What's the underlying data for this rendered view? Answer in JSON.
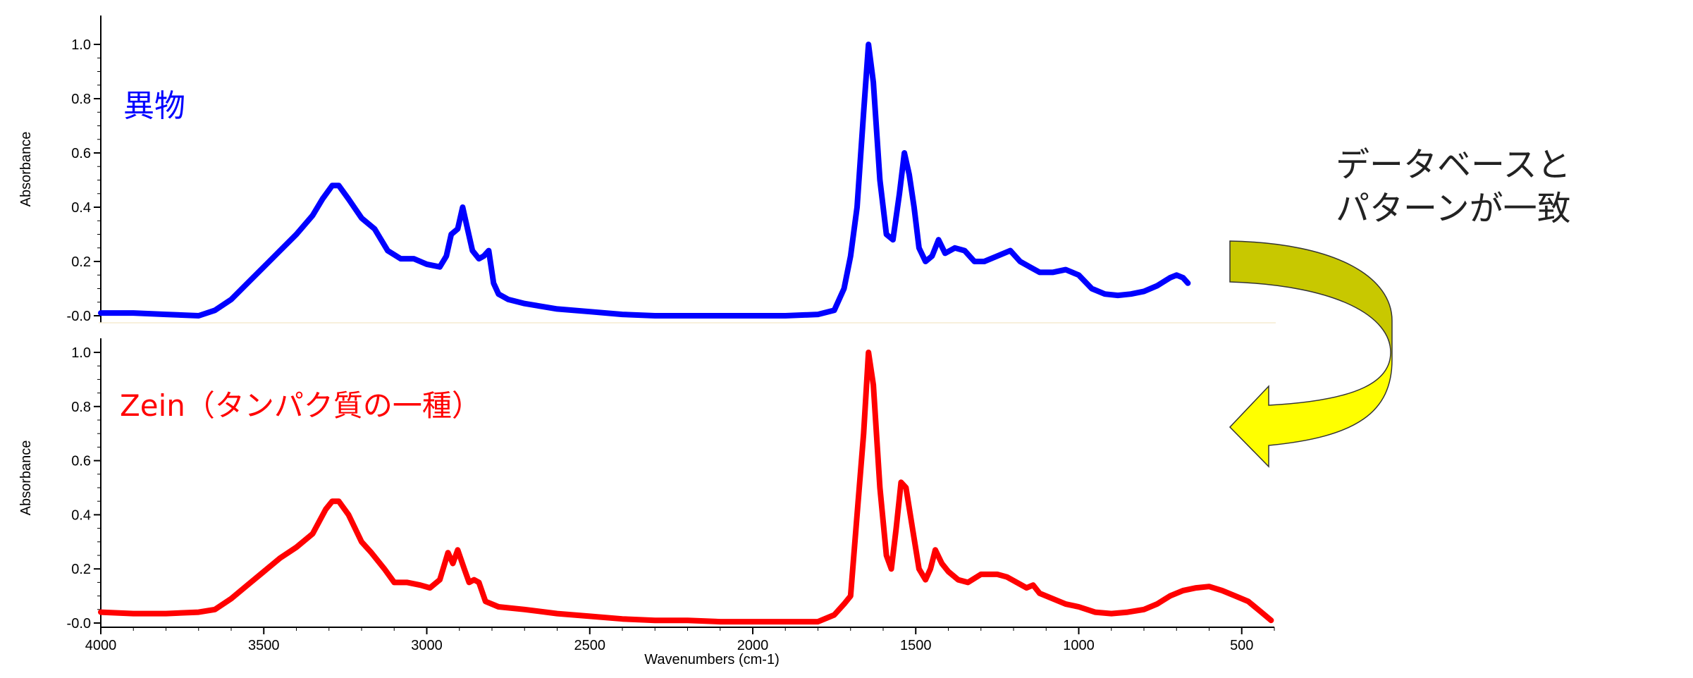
{
  "colors": {
    "top_series": "#0000ff",
    "bottom_series": "#ff0000",
    "arrow_top": "#c8c800",
    "arrow_bottom": "#ffff00"
  },
  "annotation": {
    "line1": "データベースと",
    "line2": "パターンが一致"
  },
  "chart_data": [
    {
      "type": "line",
      "series": [
        {
          "name": "異物",
          "color": "#0000ff"
        }
      ],
      "ylabel": "Absorbance",
      "xlim": [
        4000,
        400
      ],
      "ylim": [
        -0.02,
        1.05
      ],
      "x_reversed": true,
      "yticks": [
        "-0.0",
        "0.2",
        "0.4",
        "0.6",
        "0.8",
        "1.0"
      ],
      "ytick_values": [
        0.0,
        0.2,
        0.4,
        0.6,
        0.8,
        1.0
      ],
      "points": [
        [
          4000,
          0.01
        ],
        [
          3900,
          0.01
        ],
        [
          3800,
          0.005
        ],
        [
          3700,
          0.0
        ],
        [
          3650,
          0.02
        ],
        [
          3600,
          0.06
        ],
        [
          3550,
          0.12
        ],
        [
          3500,
          0.18
        ],
        [
          3450,
          0.24
        ],
        [
          3400,
          0.3
        ],
        [
          3350,
          0.37
        ],
        [
          3320,
          0.43
        ],
        [
          3290,
          0.48
        ],
        [
          3270,
          0.48
        ],
        [
          3240,
          0.43
        ],
        [
          3200,
          0.36
        ],
        [
          3160,
          0.32
        ],
        [
          3120,
          0.24
        ],
        [
          3080,
          0.21
        ],
        [
          3040,
          0.21
        ],
        [
          3000,
          0.19
        ],
        [
          2960,
          0.18
        ],
        [
          2940,
          0.22
        ],
        [
          2925,
          0.3
        ],
        [
          2905,
          0.32
        ],
        [
          2890,
          0.4
        ],
        [
          2875,
          0.32
        ],
        [
          2860,
          0.24
        ],
        [
          2840,
          0.21
        ],
        [
          2825,
          0.22
        ],
        [
          2810,
          0.24
        ],
        [
          2795,
          0.12
        ],
        [
          2780,
          0.08
        ],
        [
          2750,
          0.06
        ],
        [
          2700,
          0.045
        ],
        [
          2600,
          0.025
        ],
        [
          2500,
          0.015
        ],
        [
          2400,
          0.005
        ],
        [
          2300,
          0.0
        ],
        [
          2200,
          0.0
        ],
        [
          2100,
          0.0
        ],
        [
          2000,
          0.0
        ],
        [
          1900,
          0.0
        ],
        [
          1800,
          0.005
        ],
        [
          1750,
          0.02
        ],
        [
          1720,
          0.1
        ],
        [
          1700,
          0.22
        ],
        [
          1680,
          0.4
        ],
        [
          1660,
          0.75
        ],
        [
          1645,
          1.0
        ],
        [
          1630,
          0.86
        ],
        [
          1610,
          0.5
        ],
        [
          1590,
          0.3
        ],
        [
          1570,
          0.28
        ],
        [
          1550,
          0.45
        ],
        [
          1535,
          0.6
        ],
        [
          1520,
          0.52
        ],
        [
          1505,
          0.4
        ],
        [
          1490,
          0.25
        ],
        [
          1470,
          0.2
        ],
        [
          1450,
          0.22
        ],
        [
          1430,
          0.28
        ],
        [
          1410,
          0.23
        ],
        [
          1380,
          0.25
        ],
        [
          1350,
          0.24
        ],
        [
          1320,
          0.2
        ],
        [
          1290,
          0.2
        ],
        [
          1250,
          0.22
        ],
        [
          1210,
          0.24
        ],
        [
          1180,
          0.2
        ],
        [
          1150,
          0.18
        ],
        [
          1120,
          0.16
        ],
        [
          1080,
          0.16
        ],
        [
          1040,
          0.17
        ],
        [
          1000,
          0.15
        ],
        [
          960,
          0.1
        ],
        [
          920,
          0.08
        ],
        [
          880,
          0.075
        ],
        [
          840,
          0.08
        ],
        [
          800,
          0.09
        ],
        [
          760,
          0.11
        ],
        [
          720,
          0.14
        ],
        [
          700,
          0.15
        ],
        [
          680,
          0.14
        ],
        [
          665,
          0.12
        ]
      ]
    },
    {
      "type": "line",
      "series": [
        {
          "name": "Zein（タンパク質の一種）",
          "color": "#ff0000"
        }
      ],
      "xlabel": "Wavenumbers (cm-1)",
      "ylabel": "Absorbance",
      "xlim": [
        4000,
        400
      ],
      "ylim": [
        -0.02,
        1.05
      ],
      "x_reversed": true,
      "xticks": [
        "4000",
        "3500",
        "3000",
        "2500",
        "2000",
        "1500",
        "1000",
        "500"
      ],
      "xtick_values": [
        4000,
        3500,
        3000,
        2500,
        2000,
        1500,
        1000,
        500
      ],
      "yticks": [
        "-0.0",
        "0.2",
        "0.4",
        "0.6",
        "0.8",
        "1.0"
      ],
      "ytick_values": [
        0.0,
        0.2,
        0.4,
        0.6,
        0.8,
        1.0
      ],
      "points": [
        [
          4000,
          0.04
        ],
        [
          3900,
          0.035
        ],
        [
          3800,
          0.035
        ],
        [
          3700,
          0.04
        ],
        [
          3650,
          0.05
        ],
        [
          3600,
          0.09
        ],
        [
          3550,
          0.14
        ],
        [
          3500,
          0.19
        ],
        [
          3450,
          0.24
        ],
        [
          3400,
          0.28
        ],
        [
          3350,
          0.33
        ],
        [
          3310,
          0.42
        ],
        [
          3290,
          0.45
        ],
        [
          3270,
          0.45
        ],
        [
          3240,
          0.4
        ],
        [
          3200,
          0.3
        ],
        [
          3170,
          0.26
        ],
        [
          3130,
          0.2
        ],
        [
          3100,
          0.15
        ],
        [
          3060,
          0.15
        ],
        [
          3020,
          0.14
        ],
        [
          2990,
          0.13
        ],
        [
          2960,
          0.16
        ],
        [
          2935,
          0.26
        ],
        [
          2920,
          0.22
        ],
        [
          2905,
          0.27
        ],
        [
          2885,
          0.2
        ],
        [
          2870,
          0.15
        ],
        [
          2855,
          0.16
        ],
        [
          2840,
          0.15
        ],
        [
          2820,
          0.08
        ],
        [
          2780,
          0.06
        ],
        [
          2700,
          0.05
        ],
        [
          2600,
          0.035
        ],
        [
          2500,
          0.025
        ],
        [
          2400,
          0.015
        ],
        [
          2300,
          0.01
        ],
        [
          2200,
          0.01
        ],
        [
          2100,
          0.005
        ],
        [
          2000,
          0.005
        ],
        [
          1900,
          0.005
        ],
        [
          1800,
          0.005
        ],
        [
          1750,
          0.03
        ],
        [
          1720,
          0.07
        ],
        [
          1700,
          0.1
        ],
        [
          1680,
          0.4
        ],
        [
          1660,
          0.7
        ],
        [
          1645,
          1.0
        ],
        [
          1630,
          0.88
        ],
        [
          1610,
          0.5
        ],
        [
          1590,
          0.25
        ],
        [
          1575,
          0.2
        ],
        [
          1560,
          0.35
        ],
        [
          1545,
          0.52
        ],
        [
          1530,
          0.5
        ],
        [
          1510,
          0.35
        ],
        [
          1490,
          0.2
        ],
        [
          1470,
          0.16
        ],
        [
          1455,
          0.2
        ],
        [
          1440,
          0.27
        ],
        [
          1420,
          0.22
        ],
        [
          1400,
          0.19
        ],
        [
          1370,
          0.16
        ],
        [
          1340,
          0.15
        ],
        [
          1300,
          0.18
        ],
        [
          1250,
          0.18
        ],
        [
          1220,
          0.17
        ],
        [
          1190,
          0.15
        ],
        [
          1160,
          0.13
        ],
        [
          1140,
          0.14
        ],
        [
          1120,
          0.11
        ],
        [
          1080,
          0.09
        ],
        [
          1040,
          0.07
        ],
        [
          1000,
          0.06
        ],
        [
          950,
          0.04
        ],
        [
          900,
          0.035
        ],
        [
          850,
          0.04
        ],
        [
          800,
          0.05
        ],
        [
          760,
          0.07
        ],
        [
          720,
          0.1
        ],
        [
          680,
          0.12
        ],
        [
          640,
          0.13
        ],
        [
          600,
          0.135
        ],
        [
          560,
          0.12
        ],
        [
          520,
          0.1
        ],
        [
          480,
          0.08
        ],
        [
          440,
          0.04
        ],
        [
          410,
          0.01
        ]
      ]
    }
  ]
}
